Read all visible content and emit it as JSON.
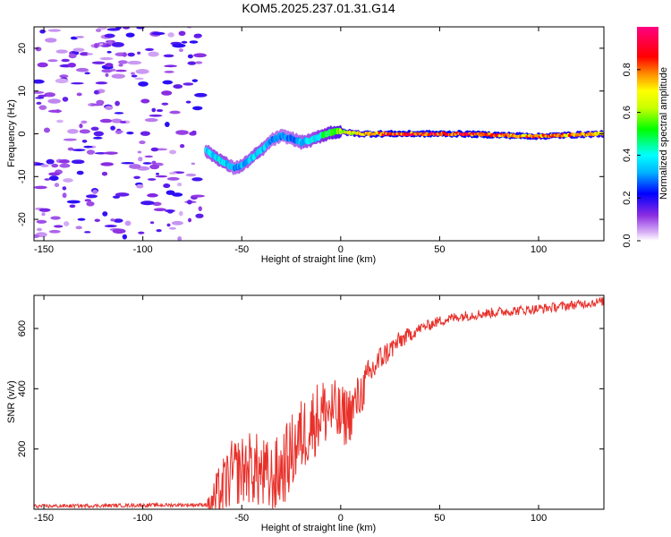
{
  "title": "KOM5.2025.237.01.31.G14",
  "chart_data": [
    {
      "type": "heatmap",
      "xlabel": "Height of straight line (km)",
      "ylabel": "Frequency (Hz)",
      "xlim": [
        -155,
        133
      ],
      "ylim": [
        -25,
        25
      ],
      "xticks": [
        -150,
        -100,
        -50,
        0,
        50,
        100
      ],
      "yticks": [
        -20,
        -10,
        0,
        10,
        20
      ],
      "colorbar": {
        "label": "Normalized spectral amplitude",
        "range": [
          0,
          1
        ],
        "ticks": [
          0.0,
          0.2,
          0.4,
          0.6,
          0.8
        ],
        "colormap": "rainbow (violet-blue-cyan-green-yellow-red-magenta)"
      },
      "ridge": {
        "x": [
          -68,
          -63,
          -58,
          -54,
          -50,
          -46,
          -42,
          -38,
          -35,
          -30,
          -25,
          -20,
          -15,
          -10,
          -5,
          0,
          5,
          10,
          20,
          40,
          60,
          80,
          100,
          120,
          133
        ],
        "freq": [
          -4,
          -5.5,
          -7,
          -8,
          -7.5,
          -6,
          -4.5,
          -3,
          -1.5,
          -0.5,
          -1,
          -2,
          -1.5,
          -0.5,
          0.3,
          0.5,
          0.2,
          0,
          0,
          0,
          0,
          -0.3,
          -0.6,
          -0.2,
          0
        ],
        "amplitude": [
          0.35,
          0.4,
          0.4,
          0.3,
          0.35,
          0.35,
          0.4,
          0.35,
          0.3,
          0.3,
          0.3,
          0.35,
          0.4,
          0.45,
          0.55,
          0.65,
          0.7,
          0.75,
          0.85,
          0.9,
          0.9,
          0.85,
          0.8,
          0.8,
          0.75
        ]
      },
      "noise_region": {
        "x_range": [
          -155,
          -70
        ],
        "amplitude_max": 0.15
      }
    },
    {
      "type": "line",
      "xlabel": "Height of straight line (km)",
      "ylabel": "SNR (v/v)",
      "xlim": [
        -155,
        133
      ],
      "ylim": [
        0,
        710
      ],
      "xticks": [
        -150,
        -100,
        -50,
        0,
        50,
        100
      ],
      "yticks": [
        200,
        400,
        600
      ],
      "color": "#e8302a",
      "trend": {
        "x": [
          -155,
          -70,
          -66,
          -62,
          -55,
          -45,
          -35,
          -28,
          -20,
          -10,
          -5,
          0,
          5,
          10,
          15,
          20,
          30,
          40,
          50,
          60,
          80,
          100,
          120,
          133
        ],
        "snr": [
          10,
          15,
          18,
          40,
          120,
          140,
          90,
          150,
          240,
          320,
          330,
          300,
          320,
          380,
          450,
          500,
          560,
          600,
          625,
          640,
          655,
          665,
          680,
          690
        ]
      },
      "spike_amplitude": {
        "x": [
          -155,
          -68,
          -62,
          -40,
          -20,
          0,
          20,
          40,
          133
        ],
        "amp": [
          6,
          6,
          100,
          130,
          130,
          110,
          45,
          18,
          15
        ]
      }
    }
  ]
}
